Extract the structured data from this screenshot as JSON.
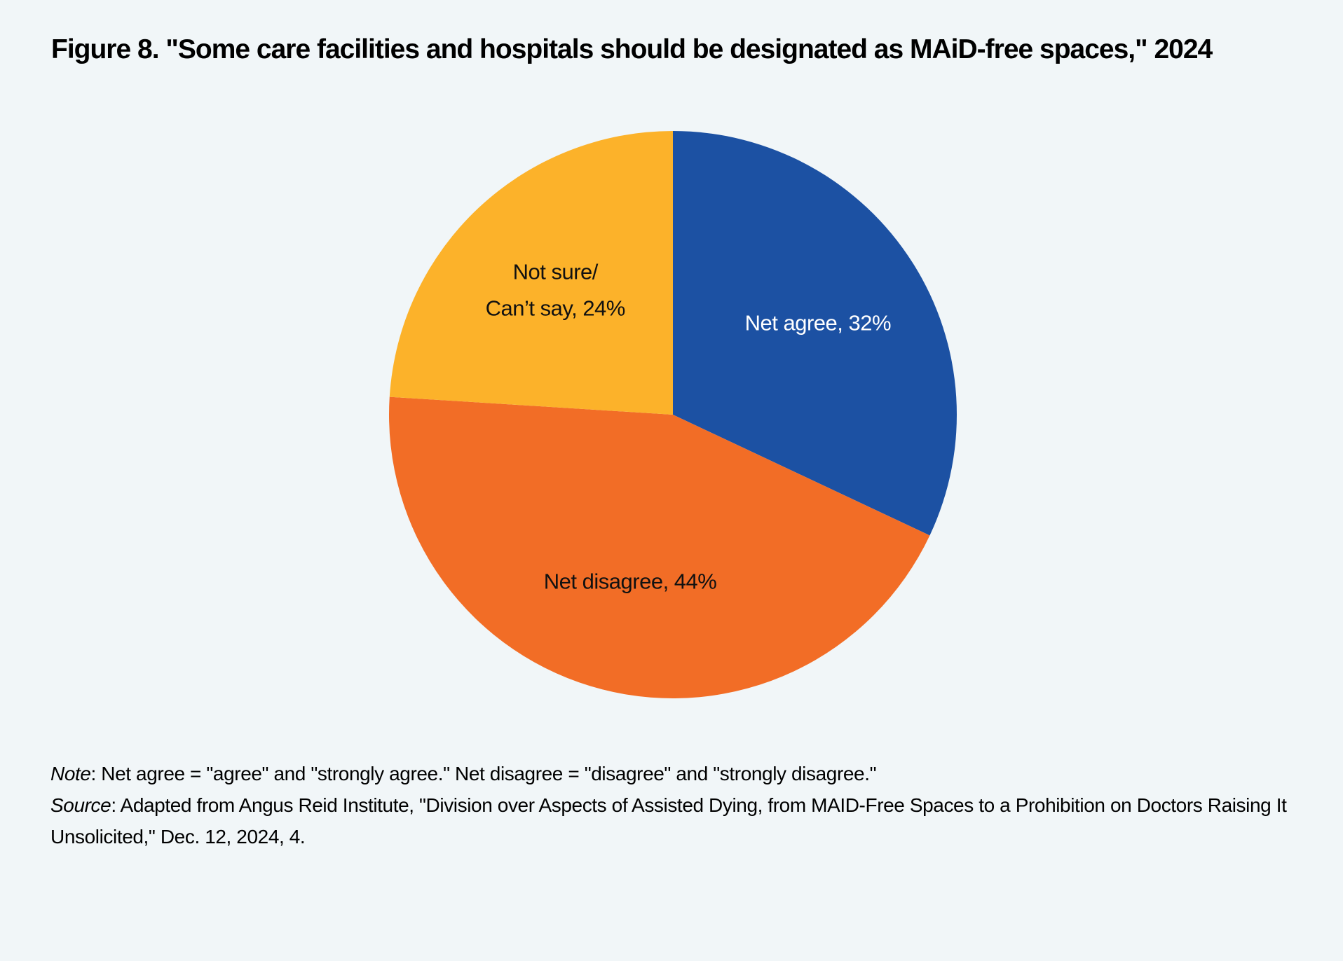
{
  "title": "Figure 8. \"Some care facilities and hospitals should be designated as MAiD-free spaces,\" 2024",
  "chart_data": {
    "type": "pie",
    "slices": [
      {
        "label_lines": [
          "Net agree, 32%"
        ],
        "value": 32,
        "color": "#1c51a3",
        "text_color": "#ffffff"
      },
      {
        "label_lines": [
          "Net disagree, 44%"
        ],
        "value": 44,
        "color": "#f26d26",
        "text_color": "#111111"
      },
      {
        "label_lines": [
          "Not sure/",
          "Can’t say, 24%"
        ],
        "value": 24,
        "color": "#fcb22a",
        "text_color": "#111111"
      }
    ],
    "start": "12 o'clock",
    "direction": "clockwise"
  },
  "note": {
    "label": "Note",
    "text": ": Net agree = \"agree\" and \"strongly agree.\" Net disagree = \"disagree\" and \"strongly disagree.\""
  },
  "source": {
    "label": "Source",
    "text": ": Adapted from Angus Reid Institute, \"Division over Aspects of Assisted Dying, from MAID-Free Spaces to a Prohibition on Doctors Raising It Unsolicited,\" Dec. 12, 2024, 4."
  }
}
